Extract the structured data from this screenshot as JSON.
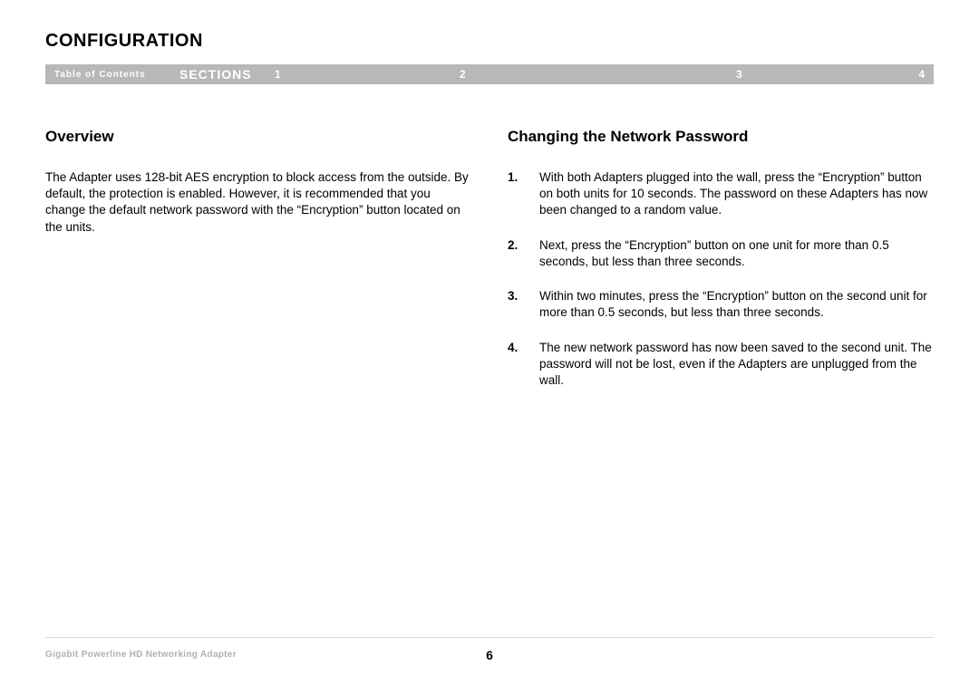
{
  "header": {
    "title": "CONFIGURATION"
  },
  "nav": {
    "toc": "Table of Contents",
    "sections_label": "SECTIONS",
    "nums": [
      "1",
      "2",
      "3",
      "4"
    ]
  },
  "content": {
    "overview": {
      "heading": "Overview",
      "text": "The Adapter uses 128-bit AES encryption to block access from the outside. By default, the protection is enabled. However, it is recommended that you change the default network password with the “Encryption” button located on the units."
    },
    "changing": {
      "heading": "Changing the Network Password",
      "steps": [
        {
          "num": "1.",
          "text": "With both Adapters plugged into the wall, press the “Encryption” button on both units for 10 seconds. The password on these Adapters has now been changed to a random value."
        },
        {
          "num": "2.",
          "text": "Next, press the “Encryption” button on one unit for more than 0.5 seconds, but less than three seconds."
        },
        {
          "num": "3.",
          "text": "Within two minutes, press the “Encryption” button on the second unit for more than 0.5 seconds, but less than three seconds."
        },
        {
          "num": "4.",
          "text": "The new network password has now been saved to the second unit. The password will not be lost, even if the Adapters are unplugged from the wall."
        }
      ]
    }
  },
  "footer": {
    "product": "Gigabit Powerline HD Networking Adapter",
    "page_number": "6"
  }
}
